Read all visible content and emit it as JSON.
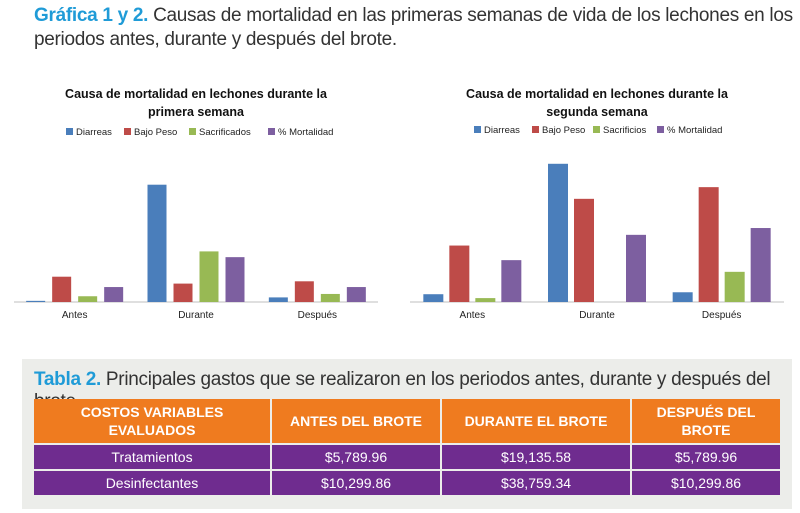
{
  "caption": {
    "lead": "Gráfica 1 y 2.",
    "text": " Causas de mortalidad en las primeras semanas de vida de los lechones en los periodos antes, durante y después del brote."
  },
  "chart_data": [
    {
      "type": "bar",
      "title": [
        "Causa de mortalidad en lechones durante la",
        "primera semana"
      ],
      "categories": [
        "Antes",
        "Durante",
        "Después"
      ],
      "series": [
        {
          "name": "Diarreas",
          "color": "#4a7ebb",
          "values": [
            0.5,
            51,
            2
          ]
        },
        {
          "name": "Bajo Peso",
          "color": "#be4b48",
          "values": [
            11,
            8,
            9
          ]
        },
        {
          "name": "Sacrificados",
          "color": "#98b954",
          "values": [
            2.5,
            22,
            3.5
          ]
        },
        {
          "name": "% Mortalidad",
          "color": "#7d5fa0",
          "values": [
            6.5,
            19.5,
            6.5
          ]
        }
      ],
      "ylim": [
        0,
        60
      ],
      "grid": false,
      "legend": "top"
    },
    {
      "type": "bar",
      "title": [
        "Causa de mortalidad en lechones durante la",
        "segunda semana"
      ],
      "categories": [
        "Antes",
        "Durante",
        "Después"
      ],
      "series": [
        {
          "name": "Diarreas",
          "color": "#4a7ebb",
          "values": [
            4,
            71,
            5
          ]
        },
        {
          "name": "Bajo Peso",
          "color": "#be4b48",
          "values": [
            29,
            53,
            59
          ]
        },
        {
          "name": "Sacrificios",
          "color": "#98b954",
          "values": [
            2,
            0,
            15.5
          ]
        },
        {
          "name": "% Mortalidad",
          "color": "#7d5fa0",
          "values": [
            21.5,
            34.5,
            38
          ]
        }
      ],
      "ylim": [
        0,
        75
      ],
      "grid": false,
      "legend": "top"
    }
  ],
  "table": {
    "caption_lead": "Tabla 2.",
    "caption_text": " Principales gastos que se realizaron en los periodos antes, durante y después del brote.",
    "headers": [
      "COSTOS VARIABLES EVALUADOS",
      "ANTES DEL BROTE",
      "DURANTE EL BROTE",
      "DESPUÉS DEL BROTE"
    ],
    "rows": [
      [
        "Tratamientos",
        "$5,789.96",
        "$19,135.58",
        "$5,789.96"
      ],
      [
        "Desinfectantes",
        "$10,299.86",
        "$38,759.34",
        "$10,299.86"
      ]
    ]
  }
}
